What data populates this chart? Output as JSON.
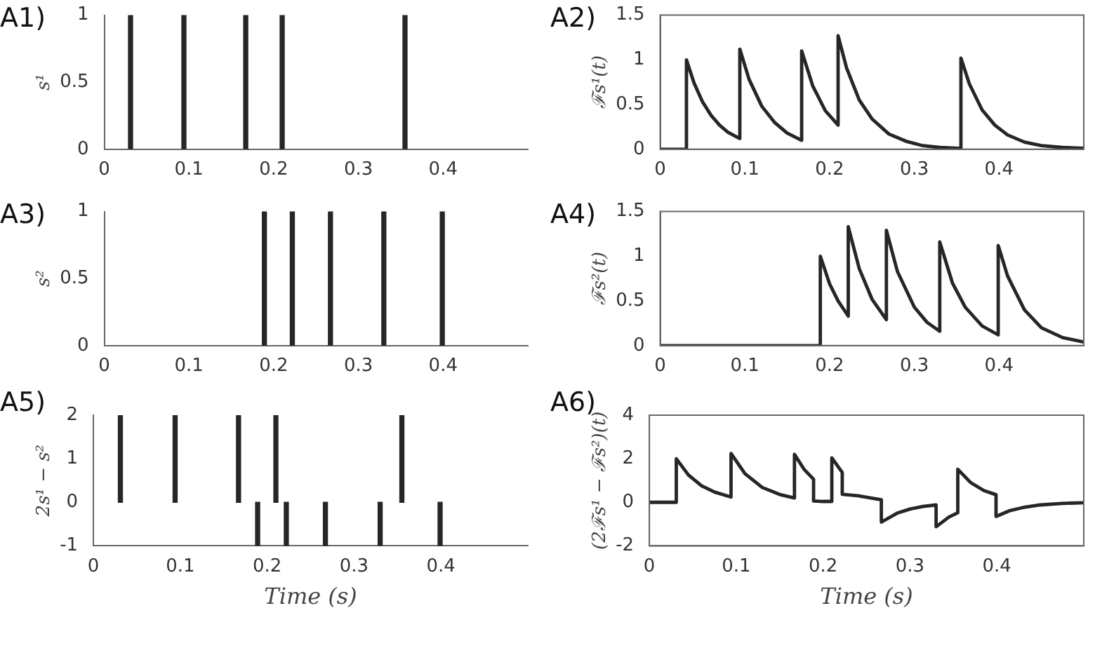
{
  "chart_data": [
    {
      "type": "bar",
      "title": "A1)",
      "ylabel": "s¹",
      "xlim": [
        0,
        0.5
      ],
      "xticks": [
        0,
        0.1,
        0.2,
        0.3,
        0.4
      ],
      "ylim": [
        0,
        1
      ],
      "yticks": [
        0,
        0.5,
        1
      ],
      "grid": false,
      "series": [
        {
          "color": "#262626",
          "x": [
            0.031,
            0.094,
            0.167,
            0.21,
            0.355
          ],
          "values": [
            1,
            1,
            1,
            1,
            1
          ]
        }
      ]
    },
    {
      "type": "line",
      "title": "A2)",
      "ylabel": "ℱs¹(t)",
      "xlim": [
        0,
        0.5
      ],
      "xticks": [
        0,
        0.1,
        0.2,
        0.3,
        0.4
      ],
      "ylim": [
        0,
        1.5
      ],
      "yticks": [
        0,
        0.5,
        1,
        1.5
      ],
      "grid": false,
      "marker": "none",
      "series": [
        {
          "color": "#262626",
          "x": [
            0,
            0.031,
            0.031,
            0.04,
            0.05,
            0.06,
            0.07,
            0.08,
            0.094,
            0.094,
            0.105,
            0.12,
            0.135,
            0.15,
            0.167,
            0.167,
            0.18,
            0.195,
            0.21,
            0.21,
            0.22,
            0.235,
            0.25,
            0.27,
            0.29,
            0.31,
            0.33,
            0.355,
            0.355,
            0.365,
            0.38,
            0.395,
            0.41,
            0.43,
            0.45,
            0.475,
            0.5
          ],
          "values": [
            0,
            0,
            1,
            0.74,
            0.53,
            0.38,
            0.27,
            0.19,
            0.12,
            1.12,
            0.78,
            0.48,
            0.3,
            0.18,
            0.1,
            1.1,
            0.71,
            0.43,
            0.27,
            1.27,
            0.91,
            0.55,
            0.34,
            0.17,
            0.09,
            0.04,
            0.02,
            0.01,
            1.02,
            0.73,
            0.44,
            0.27,
            0.16,
            0.08,
            0.04,
            0.02,
            0.01
          ]
        }
      ]
    },
    {
      "type": "bar",
      "title": "A3)",
      "ylabel": "s²",
      "xlim": [
        0,
        0.5
      ],
      "xticks": [
        0,
        0.1,
        0.2,
        0.3,
        0.4
      ],
      "ylim": [
        0,
        1
      ],
      "yticks": [
        0,
        0.5,
        1
      ],
      "grid": false,
      "series": [
        {
          "color": "#262626",
          "x": [
            0.189,
            0.222,
            0.267,
            0.33,
            0.399
          ],
          "values": [
            1,
            1,
            1,
            1,
            1
          ]
        }
      ]
    },
    {
      "type": "line",
      "title": "A4)",
      "ylabel": "ℱs²(t)",
      "xlim": [
        0,
        0.5
      ],
      "xticks": [
        0,
        0.1,
        0.2,
        0.3,
        0.4
      ],
      "ylim": [
        0,
        1.5
      ],
      "yticks": [
        0,
        0.5,
        1,
        1.5
      ],
      "grid": false,
      "marker": "none",
      "series": [
        {
          "color": "#262626",
          "x": [
            0,
            0.189,
            0.189,
            0.2,
            0.21,
            0.222,
            0.222,
            0.235,
            0.25,
            0.267,
            0.267,
            0.28,
            0.3,
            0.315,
            0.33,
            0.33,
            0.345,
            0.36,
            0.38,
            0.399,
            0.399,
            0.41,
            0.43,
            0.45,
            0.475,
            0.5
          ],
          "values": [
            0,
            0,
            1,
            0.69,
            0.5,
            0.33,
            1.33,
            0.86,
            0.52,
            0.29,
            1.29,
            0.83,
            0.43,
            0.26,
            0.16,
            1.16,
            0.7,
            0.43,
            0.22,
            0.12,
            1.12,
            0.78,
            0.4,
            0.2,
            0.09,
            0.04
          ]
        }
      ]
    },
    {
      "type": "bar",
      "title": "A5)",
      "ylabel": "2s¹ − s²",
      "xlabel": "Time (s)",
      "xlim": [
        0,
        0.5
      ],
      "xticks": [
        0,
        0.1,
        0.2,
        0.3,
        0.4
      ],
      "ylim": [
        -1,
        2
      ],
      "yticks": [
        -1,
        0,
        1,
        2
      ],
      "grid": false,
      "series": [
        {
          "color": "#262626",
          "x": [
            0.031,
            0.094,
            0.167,
            0.189,
            0.21,
            0.222,
            0.267,
            0.33,
            0.355,
            0.399
          ],
          "values": [
            2,
            2,
            2,
            -1,
            2,
            -1,
            -1,
            -1,
            2,
            -1
          ]
        }
      ]
    },
    {
      "type": "line",
      "title": "A6)",
      "ylabel": "(2ℱs¹ − ℱs²)(t)",
      "xlabel": "Time (s)",
      "xlim": [
        0,
        0.5
      ],
      "xticks": [
        0,
        0.1,
        0.2,
        0.3,
        0.4
      ],
      "ylim": [
        -2,
        4
      ],
      "yticks": [
        -2,
        0,
        2,
        4
      ],
      "grid": false,
      "marker": "none",
      "series": [
        {
          "color": "#262626",
          "x": [
            0,
            0.031,
            0.031,
            0.045,
            0.06,
            0.075,
            0.094,
            0.094,
            0.11,
            0.13,
            0.15,
            0.167,
            0.167,
            0.178,
            0.189,
            0.189,
            0.2,
            0.21,
            0.21,
            0.222,
            0.222,
            0.24,
            0.255,
            0.267,
            0.267,
            0.285,
            0.3,
            0.315,
            0.33,
            0.33,
            0.345,
            0.355,
            0.355,
            0.37,
            0.385,
            0.399,
            0.399,
            0.415,
            0.43,
            0.45,
            0.475,
            0.5
          ],
          "values": [
            0,
            0,
            2,
            1.25,
            0.76,
            0.47,
            0.24,
            2.24,
            1.32,
            0.68,
            0.36,
            0.2,
            2.2,
            1.52,
            1.06,
            0.06,
            0.04,
            0.04,
            2.04,
            1.37,
            0.37,
            0.3,
            0.2,
            0.12,
            -0.91,
            -0.5,
            -0.31,
            -0.19,
            -0.12,
            -1.12,
            -0.67,
            -0.48,
            1.52,
            0.9,
            0.54,
            0.35,
            -0.65,
            -0.38,
            -0.24,
            -0.12,
            -0.05,
            -0.02
          ]
        }
      ]
    }
  ]
}
